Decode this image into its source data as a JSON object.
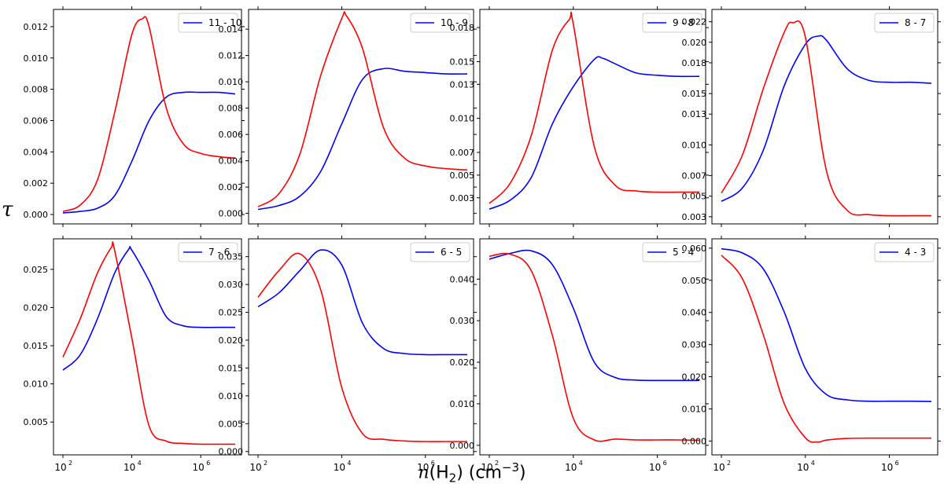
{
  "figure": {
    "xlabel": {
      "var": "n",
      "mid": "(H",
      "sub": "2",
      "unit": ") (cm",
      "sup": "−3",
      "close": ")"
    },
    "ylabel": "τ",
    "series_colors": {
      "red": "#ff0000",
      "blue": "#0000ff"
    }
  },
  "chart_data": [
    {
      "type": "line",
      "legend": "11 - 10",
      "legend_position": "upper-right",
      "xscale": "log",
      "xlim": [
        100,
        10000000
      ],
      "ylim": [
        -0.0006,
        0.0131
      ],
      "x_ticks": [
        {
          "v": 100,
          "label": "10",
          "exp": "2"
        },
        {
          "v": 10000,
          "label": "10",
          "exp": "4"
        },
        {
          "v": 1000000,
          "label": "10",
          "exp": "6"
        }
      ],
      "y_ticks": [
        "0.000",
        "0.002",
        "0.004",
        "0.006",
        "0.008",
        "0.010",
        "0.012"
      ],
      "y_tick_values": [
        0,
        0.002,
        0.004,
        0.006,
        0.008,
        0.01,
        0.012
      ],
      "series": [
        {
          "name": "11 - 10",
          "color": "#0000ff",
          "x": [
            100,
            316,
            1000,
            3162,
            10000,
            31623,
            100000,
            316228,
            1000000,
            3162278,
            10000000
          ],
          "y": [
            0.0001,
            0.0002,
            0.0004,
            0.0012,
            0.0034,
            0.006,
            0.0075,
            0.0078,
            0.0078,
            0.0078,
            0.0077
          ]
        },
        {
          "color": "#ff0000",
          "x": [
            100,
            316,
            1000,
            3162,
            10000,
            20000,
            31623,
            100000,
            316228,
            1000000,
            3162278,
            10000000
          ],
          "y": [
            0.0002,
            0.0006,
            0.0022,
            0.0065,
            0.0115,
            0.0125,
            0.012,
            0.0068,
            0.0045,
            0.0039,
            0.0037,
            0.0036
          ]
        }
      ]
    },
    {
      "type": "line",
      "legend": "10 - 9",
      "legend_position": "upper-right",
      "xscale": "log",
      "xlim": [
        100,
        10000000
      ],
      "ylim": [
        -0.0008,
        0.0155
      ],
      "x_ticks": [
        {
          "v": 100,
          "label": "10",
          "exp": "2"
        },
        {
          "v": 10000,
          "label": "10",
          "exp": "4"
        },
        {
          "v": 1000000,
          "label": "10",
          "exp": "6"
        }
      ],
      "y_ticks": [
        "0.000",
        "0.002",
        "0.004",
        "0.006",
        "0.008",
        "0.010",
        "0.012",
        "0.014"
      ],
      "y_tick_values": [
        0,
        0.002,
        0.004,
        0.006,
        0.008,
        0.01,
        0.012,
        0.014
      ],
      "series": [
        {
          "name": "10 - 9",
          "color": "#0000ff",
          "x": [
            100,
            316,
            1000,
            3162,
            10000,
            31623,
            100000,
            316228,
            1000000,
            3162278,
            10000000
          ],
          "y": [
            0.0003,
            0.0006,
            0.0013,
            0.0032,
            0.0068,
            0.0102,
            0.011,
            0.0108,
            0.0107,
            0.0106,
            0.0106
          ]
        },
        {
          "color": "#ff0000",
          "x": [
            100,
            316,
            1000,
            3162,
            10000,
            13000,
            31623,
            100000,
            316228,
            1000000,
            3162278,
            10000000
          ],
          "y": [
            0.0005,
            0.0015,
            0.0045,
            0.0105,
            0.0148,
            0.015,
            0.0125,
            0.0065,
            0.0042,
            0.0036,
            0.0034,
            0.0033
          ]
        }
      ]
    },
    {
      "type": "line",
      "legend": "9 - 8",
      "legend_position": "upper-right",
      "xscale": "log",
      "xlim": [
        100,
        10000000
      ],
      "ylim": [
        0.0007,
        0.0196
      ],
      "x_ticks": [
        {
          "v": 100,
          "label": "10",
          "exp": "2"
        },
        {
          "v": 10000,
          "label": "10",
          "exp": "4"
        },
        {
          "v": 1000000,
          "label": "10",
          "exp": "6"
        }
      ],
      "y_ticks": [
        "0.003",
        "0.005",
        "0.007",
        "0.010",
        "0.013",
        "0.015",
        "0.018"
      ],
      "y_tick_values": [
        0.003,
        0.005,
        0.007,
        0.01,
        0.013,
        0.015,
        0.018
      ],
      "series": [
        {
          "name": "9 - 8",
          "color": "#0000ff",
          "x": [
            100,
            316,
            1000,
            3162,
            10000,
            31623,
            50000,
            100000,
            316228,
            1000000,
            3162278,
            10000000
          ],
          "y": [
            0.002,
            0.0028,
            0.0048,
            0.0095,
            0.0128,
            0.0152,
            0.0153,
            0.0148,
            0.014,
            0.0138,
            0.0137,
            0.0137
          ]
        },
        {
          "color": "#ff0000",
          "x": [
            100,
            316,
            1000,
            3162,
            8000,
            10000,
            31623,
            100000,
            316228,
            1000000,
            3162278,
            10000000
          ],
          "y": [
            0.0025,
            0.0043,
            0.0085,
            0.016,
            0.0187,
            0.0183,
            0.0075,
            0.0041,
            0.0036,
            0.0035,
            0.0035,
            0.0035
          ]
        }
      ]
    },
    {
      "type": "line",
      "legend": "8 - 7",
      "legend_position": "upper-right",
      "xscale": "log",
      "xlim": [
        100,
        10000000
      ],
      "ylim": [
        0.0023,
        0.0232
      ],
      "x_ticks": [
        {
          "v": 100,
          "label": "10",
          "exp": "2"
        },
        {
          "v": 10000,
          "label": "10",
          "exp": "4"
        },
        {
          "v": 1000000,
          "label": "10",
          "exp": "6"
        }
      ],
      "y_ticks": [
        "0.003",
        "0.005",
        "0.007",
        "0.010",
        "0.013",
        "0.015",
        "0.018",
        "0.020",
        "0.022"
      ],
      "y_tick_values": [
        0.003,
        0.005,
        0.007,
        0.01,
        0.013,
        0.015,
        0.018,
        0.02,
        0.022
      ],
      "series": [
        {
          "name": "8 - 7",
          "color": "#0000ff",
          "x": [
            100,
            316,
            1000,
            3162,
            10000,
            20000,
            31623,
            100000,
            316228,
            1000000,
            3162278,
            10000000
          ],
          "y": [
            0.0045,
            0.0058,
            0.0095,
            0.0158,
            0.0198,
            0.0206,
            0.0202,
            0.0174,
            0.0163,
            0.0161,
            0.0161,
            0.016
          ]
        },
        {
          "color": "#ff0000",
          "x": [
            100,
            316,
            1000,
            3162,
            5000,
            10000,
            31623,
            100000,
            316228,
            1000000,
            3162278,
            10000000
          ],
          "y": [
            0.0053,
            0.009,
            0.0155,
            0.021,
            0.0219,
            0.0205,
            0.0075,
            0.0036,
            0.0032,
            0.0031,
            0.0031,
            0.0031
          ]
        }
      ]
    },
    {
      "type": "line",
      "legend": "7 - 6",
      "legend_position": "upper-right",
      "xscale": "log",
      "xlim": [
        100,
        10000000
      ],
      "ylim": [
        0.0007,
        0.029
      ],
      "x_ticks": [
        {
          "v": 100,
          "label": "10",
          "exp": "2"
        },
        {
          "v": 10000,
          "label": "10",
          "exp": "4"
        },
        {
          "v": 1000000,
          "label": "10",
          "exp": "6"
        }
      ],
      "y_ticks": [
        "0.005",
        "0.010",
        "0.015",
        "0.020",
        "0.025"
      ],
      "y_tick_values": [
        0.005,
        0.01,
        0.015,
        0.02,
        0.025
      ],
      "series": [
        {
          "name": "7 - 6",
          "color": "#0000ff",
          "x": [
            100,
            316,
            1000,
            3162,
            8000,
            10000,
            31623,
            100000,
            316228,
            1000000,
            3162278,
            10000000
          ],
          "y": [
            0.0118,
            0.0138,
            0.0185,
            0.0245,
            0.0276,
            0.0275,
            0.0235,
            0.0188,
            0.0176,
            0.0174,
            0.0174,
            0.0174
          ]
        },
        {
          "color": "#ff0000",
          "x": [
            100,
            316,
            1000,
            2500,
            3162,
            10000,
            31623,
            100000,
            316228,
            1000000,
            3162278,
            10000000
          ],
          "y": [
            0.0135,
            0.0185,
            0.0245,
            0.0278,
            0.0275,
            0.016,
            0.0045,
            0.0025,
            0.0022,
            0.0021,
            0.0021,
            0.0021
          ]
        }
      ]
    },
    {
      "type": "line",
      "legend": "6 - 5",
      "legend_position": "upper-right",
      "xscale": "log",
      "xlim": [
        100,
        10000000
      ],
      "ylim": [
        -0.0006,
        0.0382
      ],
      "x_ticks": [
        {
          "v": 100,
          "label": "10",
          "exp": "2"
        },
        {
          "v": 10000,
          "label": "10",
          "exp": "4"
        },
        {
          "v": 1000000,
          "label": "10",
          "exp": "6"
        }
      ],
      "y_ticks": [
        "0.000",
        "0.005",
        "0.010",
        "0.015",
        "0.020",
        "0.025",
        "0.030",
        "0.035"
      ],
      "y_tick_values": [
        0,
        0.005,
        0.01,
        0.015,
        0.02,
        0.025,
        0.03,
        0.035
      ],
      "series": [
        {
          "name": "6 - 5",
          "color": "#0000ff",
          "x": [
            100,
            316,
            1000,
            3162,
            10000,
            31623,
            100000,
            316228,
            1000000,
            3162278,
            10000000
          ],
          "y": [
            0.026,
            0.0285,
            0.0325,
            0.0362,
            0.0335,
            0.023,
            0.0185,
            0.0176,
            0.0174,
            0.0174,
            0.0174
          ]
        },
        {
          "color": "#ff0000",
          "x": [
            100,
            316,
            1000,
            3162,
            10000,
            31623,
            100000,
            316228,
            1000000,
            3162278,
            10000000
          ],
          "y": [
            0.0277,
            0.0325,
            0.0355,
            0.029,
            0.0115,
            0.0032,
            0.0022,
            0.0019,
            0.0018,
            0.0018,
            0.0018
          ]
        }
      ]
    },
    {
      "type": "line",
      "legend": "5 - 4",
      "legend_position": "upper-right",
      "xscale": "log",
      "xlim": [
        100,
        10000000
      ],
      "ylim": [
        -0.0023,
        0.0497
      ],
      "x_ticks": [
        {
          "v": 100,
          "label": "10",
          "exp": "2"
        },
        {
          "v": 10000,
          "label": "10",
          "exp": "4"
        },
        {
          "v": 1000000,
          "label": "10",
          "exp": "6"
        }
      ],
      "y_ticks": [
        "0.000",
        "0.010",
        "0.020",
        "0.030",
        "0.040"
      ],
      "y_tick_values": [
        0,
        0.01,
        0.02,
        0.03,
        0.04
      ],
      "series": [
        {
          "name": "5 - 4",
          "color": "#0000ff",
          "x": [
            100,
            316,
            1000,
            3162,
            10000,
            31623,
            100000,
            316228,
            1000000,
            3162278,
            10000000
          ],
          "y": [
            0.0448,
            0.0462,
            0.0468,
            0.0435,
            0.033,
            0.02,
            0.0163,
            0.0157,
            0.0156,
            0.0156,
            0.0156
          ]
        },
        {
          "color": "#ff0000",
          "x": [
            100,
            316,
            1000,
            3162,
            10000,
            31623,
            100000,
            316228,
            1000000,
            3162278,
            10000000
          ],
          "y": [
            0.0455,
            0.046,
            0.042,
            0.0265,
            0.0065,
            0.0013,
            0.0015,
            0.0013,
            0.0013,
            0.0013,
            0.0012
          ]
        }
      ]
    },
    {
      "type": "line",
      "legend": "4 - 3",
      "legend_position": "upper-right",
      "xscale": "log",
      "xlim": [
        100,
        10000000
      ],
      "ylim": [
        -0.0043,
        0.0629
      ],
      "x_ticks": [
        {
          "v": 100,
          "label": "10",
          "exp": "2"
        },
        {
          "v": 10000,
          "label": "10",
          "exp": "4"
        },
        {
          "v": 1000000,
          "label": "10",
          "exp": "6"
        }
      ],
      "y_ticks": [
        "0.000",
        "0.010",
        "0.020",
        "0.030",
        "0.040",
        "0.050",
        "0.060"
      ],
      "y_tick_values": [
        0,
        0.01,
        0.02,
        0.03,
        0.04,
        0.05,
        0.06
      ],
      "series": [
        {
          "name": "4 - 3",
          "color": "#0000ff",
          "x": [
            100,
            316,
            1000,
            3162,
            10000,
            31623,
            100000,
            316228,
            1000000,
            3162278,
            10000000
          ],
          "y": [
            0.0598,
            0.0585,
            0.0535,
            0.04,
            0.0225,
            0.0145,
            0.0128,
            0.0124,
            0.0124,
            0.0124,
            0.0123
          ]
        },
        {
          "color": "#ff0000",
          "x": [
            100,
            316,
            1000,
            3162,
            10000,
            20000,
            31623,
            100000,
            316228,
            1000000,
            3162278,
            10000000
          ],
          "y": [
            0.0578,
            0.0505,
            0.033,
            0.0115,
            0.001,
            -0.0003,
            0.0003,
            0.0008,
            0.0009,
            0.0009,
            0.0009,
            0.0009
          ]
        }
      ]
    }
  ]
}
